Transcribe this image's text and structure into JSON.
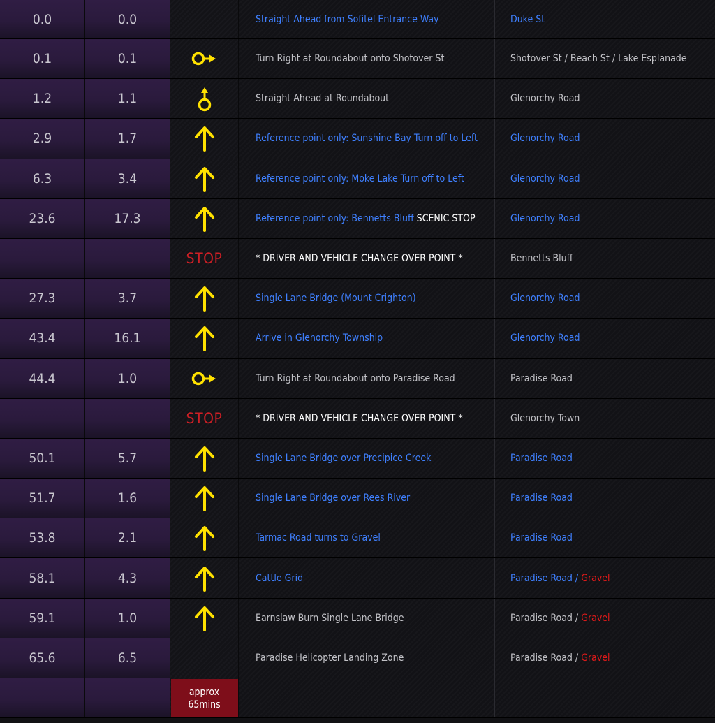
{
  "colors": {
    "accent_blue": "#3f80ff",
    "icon_yellow": "#ffe100",
    "stop_red": "#cc1f25",
    "gravel_red": "#e21a1a",
    "badge_bg": "#7e0e1a",
    "purple_column": "#2a1a3c"
  },
  "rows": [
    {
      "total": "0.0",
      "leg": "0.0",
      "icon": "none",
      "desc_blue": "Straight Ahead from Sofitel Entrance Way",
      "road_blue": "Duke St"
    },
    {
      "total": "0.1",
      "leg": "0.1",
      "icon": "roundabout-right-icon",
      "desc": "Turn Right at Roundabout onto Shotover St",
      "road": "Shotover St / Beach St / Lake Esplanade"
    },
    {
      "total": "1.2",
      "leg": "1.1",
      "icon": "roundabout-straight-icon",
      "desc": "Straight Ahead at Roundabout",
      "road": "Glenorchy Road"
    },
    {
      "total": "2.9",
      "leg": "1.7",
      "icon": "arrow-up-icon",
      "desc_blue": "Reference point only: Sunshine Bay Turn off to Left",
      "road_blue": "Glenorchy Road"
    },
    {
      "total": "6.3",
      "leg": "3.4",
      "icon": "arrow-up-icon",
      "desc_blue": "Reference point only: Moke Lake Turn off to Left",
      "road_blue": "Glenorchy Road"
    },
    {
      "total": "23.6",
      "leg": "17.3",
      "icon": "arrow-up-icon",
      "desc_blue": "Reference point only: Bennetts Bluff",
      "desc_white": "SCENIC STOP",
      "road_blue": "Glenorchy Road"
    },
    {
      "total": "",
      "leg": "",
      "icon": "stop",
      "stop_label": "STOP",
      "desc_white": "* DRIVER AND VEHICLE CHANGE OVER POINT *",
      "road": "Bennetts Bluff"
    },
    {
      "total": "27.3",
      "leg": "3.7",
      "icon": "arrow-up-icon",
      "desc_blue": "Single Lane Bridge (Mount Crighton)",
      "road_blue": "Glenorchy Road"
    },
    {
      "total": "43.4",
      "leg": "16.1",
      "icon": "arrow-up-icon",
      "desc_blue": "Arrive in Glenorchy Township",
      "road_blue": "Glenorchy Road"
    },
    {
      "total": "44.4",
      "leg": "1.0",
      "icon": "roundabout-right-icon",
      "desc": "Turn Right at Roundabout onto Paradise Road",
      "road": "Paradise Road"
    },
    {
      "total": "",
      "leg": "",
      "icon": "stop",
      "stop_label": "STOP",
      "desc_white": "* DRIVER AND VEHICLE CHANGE OVER POINT *",
      "road": "Glenorchy Town"
    },
    {
      "total": "50.1",
      "leg": "5.7",
      "icon": "arrow-up-icon",
      "desc_blue": "Single Lane Bridge over Precipice Creek",
      "road_blue": "Paradise Road"
    },
    {
      "total": "51.7",
      "leg": "1.6",
      "icon": "arrow-up-icon",
      "desc_blue": "Single Lane Bridge over Rees River",
      "road_blue": "Paradise Road"
    },
    {
      "total": "53.8",
      "leg": "2.1",
      "icon": "arrow-up-icon",
      "desc_blue": "Tarmac Road turns to Gravel",
      "road_blue": "Paradise Road"
    },
    {
      "total": "58.1",
      "leg": "4.3",
      "icon": "arrow-up-icon",
      "desc_blue": "Cattle Grid",
      "road_blue": "Paradise Road /",
      "road_red": "Gravel"
    },
    {
      "total": "59.1",
      "leg": "1.0",
      "icon": "arrow-up-icon",
      "desc": "Earnslaw Burn Single Lane Bridge",
      "road": "Paradise Road /",
      "road_red": "Gravel"
    },
    {
      "total": "65.6",
      "leg": "6.5",
      "icon": "none",
      "desc": "Paradise Helicopter Landing Zone",
      "road": "Paradise Road /",
      "road_red": "Gravel"
    },
    {
      "total": "",
      "leg": "",
      "icon": "badge",
      "badge_line1": "approx",
      "badge_line2": "65mins"
    }
  ]
}
